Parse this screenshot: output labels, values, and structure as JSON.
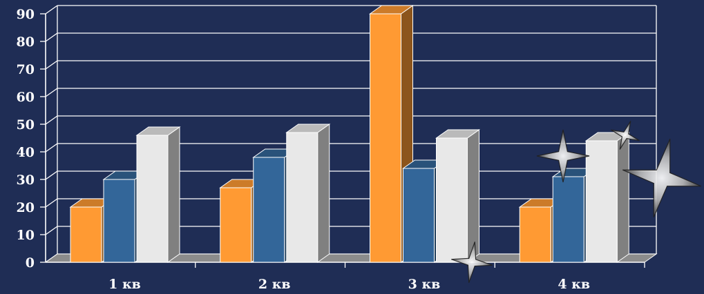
{
  "chart_data": {
    "type": "bar",
    "style": "3d-clustered-column",
    "title": "",
    "xlabel": "",
    "ylabel": "",
    "categories": [
      "1 кв",
      "2 кв",
      "3 кв",
      "4 кв"
    ],
    "series": [
      {
        "values": [
          20,
          27,
          90,
          20
        ],
        "color": "#ff9a33"
      },
      {
        "values": [
          30,
          38,
          34,
          31
        ],
        "color": "#336699"
      },
      {
        "values": [
          46,
          47,
          45,
          44
        ],
        "color": "#e8e8e8"
      }
    ],
    "ylim": [
      0,
      90
    ],
    "yticks": [
      0,
      10,
      20,
      30,
      40,
      50,
      60,
      70,
      80,
      90
    ],
    "grid": true,
    "legend": "none",
    "colors": {
      "background": "#1f2d55",
      "gridline": "#ffffff",
      "text": "#ffffff"
    },
    "decorations": [
      "sparkle-star-icon",
      "sparkle-star-icon",
      "sparkle-star-icon",
      "sparkle-star-icon"
    ]
  }
}
